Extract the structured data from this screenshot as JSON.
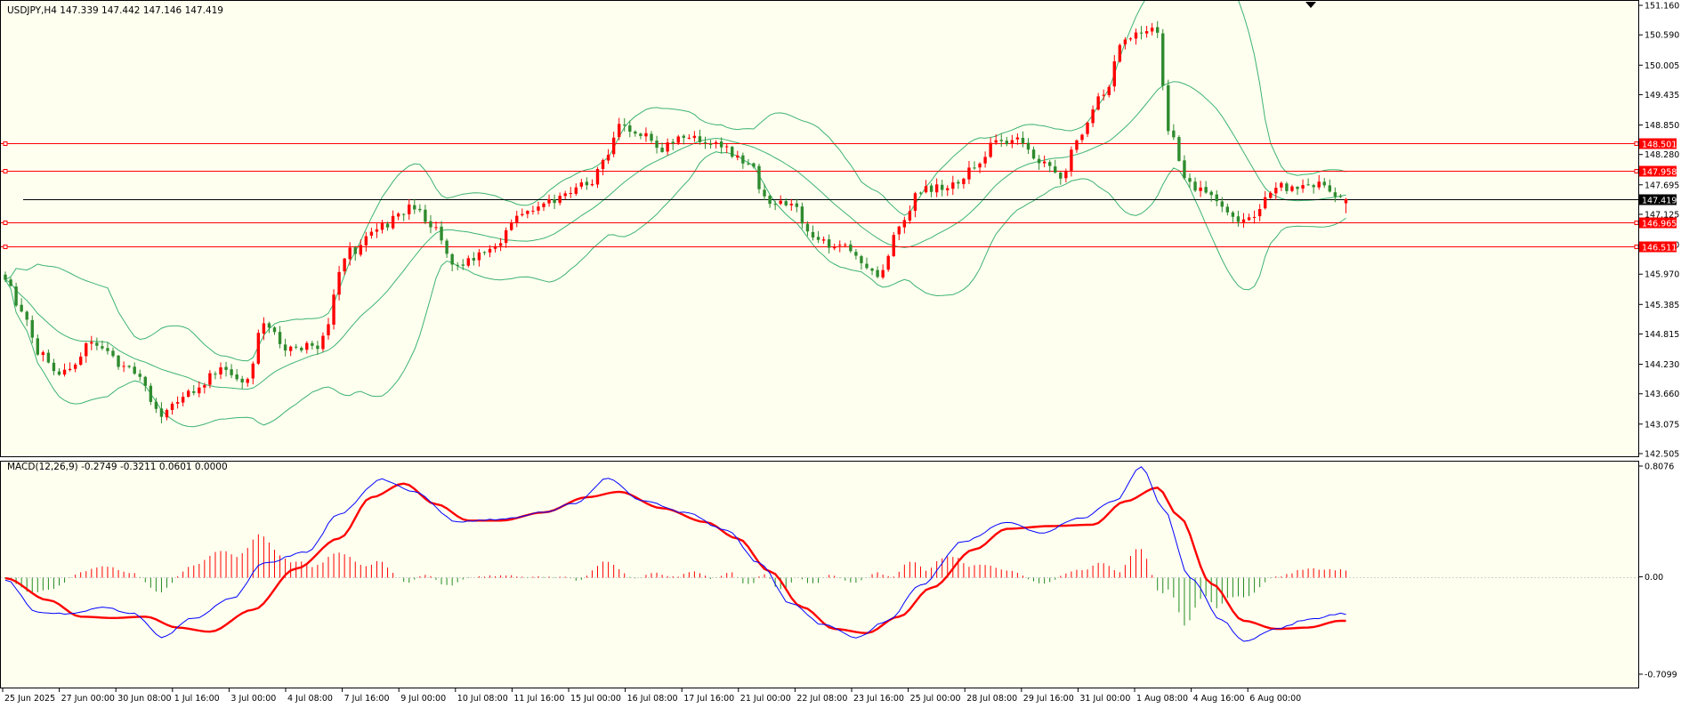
{
  "price_chart": {
    "header": "USDJPY,H4  147.339 147.442 147.146 147.419",
    "y_ticks": [
      151.16,
      150.59,
      150.005,
      149.435,
      148.85,
      148.28,
      147.695,
      147.125,
      146.54,
      145.97,
      145.385,
      144.815,
      144.23,
      143.66,
      143.075,
      142.505
    ],
    "ylim": [
      142.505,
      151.16
    ],
    "current_price": {
      "value": 147.419,
      "label": "147.419"
    },
    "levels": [
      {
        "value": 148.501,
        "label": "148.501"
      },
      {
        "value": 147.958,
        "label": "147.958"
      },
      {
        "value": 146.965,
        "label": "146.965"
      },
      {
        "value": 146.511,
        "label": "146.511"
      }
    ]
  },
  "macd_chart": {
    "header": "MACD(12,26,9) -0.2749 -0.3211 0.0601 0.0000",
    "y_ticks": [
      {
        "value": 0.8076,
        "label": "0.8076"
      },
      {
        "value": 0.0,
        "label": "0.00"
      },
      {
        "value": -0.7099,
        "label": "-0.7099"
      }
    ],
    "ylim": [
      -0.7099,
      0.8076
    ]
  },
  "x_labels": [
    "25 Jun 2025",
    "27 Jun 00:00",
    "30 Jun 08:00",
    "1 Jul 16:00",
    "3 Jul 00:00",
    "4 Jul 08:00",
    "7 Jul 16:00",
    "9 Jul 00:00",
    "10 Jul 08:00",
    "11 Jul 16:00",
    "15 Jul 00:00",
    "16 Jul 08:00",
    "17 Jul 16:00",
    "21 Jul 00:00",
    "22 Jul 08:00",
    "23 Jul 16:00",
    "25 Jul 00:00",
    "28 Jul 08:00",
    "29 Jul 16:00",
    "31 Jul 00:00",
    "1 Aug 08:00",
    "4 Aug 16:00",
    "6 Aug 00:00"
  ],
  "colors": {
    "bull": "#ff0000",
    "bear": "#2e8b2e",
    "band": "#3cb371",
    "level": "#ff0000",
    "macd_line": "#0000ff",
    "signal_line": "#ff0000",
    "hist_pos": "#ff0000",
    "hist_neg": "#228b22"
  },
  "chart_data": [
    {
      "type": "candlestick",
      "title": "USDJPY,H4",
      "ylim": [
        142.505,
        151.16
      ],
      "close_anchors": [
        [
          0,
          145.8
        ],
        [
          3,
          145.3
        ],
        [
          6,
          144.5
        ],
        [
          10,
          144.0
        ],
        [
          16,
          144.6
        ],
        [
          24,
          144.1
        ],
        [
          29,
          143.3
        ],
        [
          33,
          143.6
        ],
        [
          40,
          144.1
        ],
        [
          45,
          143.9
        ],
        [
          48,
          145.1
        ],
        [
          52,
          144.5
        ],
        [
          58,
          144.6
        ],
        [
          64,
          146.4
        ],
        [
          70,
          146.9
        ],
        [
          76,
          147.3
        ],
        [
          80,
          146.8
        ],
        [
          84,
          146.1
        ],
        [
          90,
          146.5
        ],
        [
          96,
          147.1
        ],
        [
          102,
          147.4
        ],
        [
          108,
          147.7
        ],
        [
          112,
          148.2
        ],
        [
          114,
          148.9
        ],
        [
          118,
          148.7
        ],
        [
          122,
          148.4
        ],
        [
          126,
          148.6
        ],
        [
          132,
          148.5
        ],
        [
          138,
          148.1
        ],
        [
          142,
          147.3
        ],
        [
          146,
          147.4
        ],
        [
          150,
          146.6
        ],
        [
          156,
          146.5
        ],
        [
          162,
          146.0
        ],
        [
          166,
          146.8
        ],
        [
          170,
          147.6
        ],
        [
          176,
          147.7
        ],
        [
          180,
          148.0
        ],
        [
          184,
          148.5
        ],
        [
          188,
          148.6
        ],
        [
          192,
          148.1
        ],
        [
          196,
          147.9
        ],
        [
          200,
          148.7
        ],
        [
          204,
          149.5
        ],
        [
          208,
          150.5
        ],
        [
          212,
          150.7
        ],
        [
          214,
          150.6
        ],
        [
          216,
          148.7
        ],
        [
          220,
          147.7
        ],
        [
          224,
          147.5
        ],
        [
          228,
          147.0
        ],
        [
          232,
          147.1
        ],
        [
          236,
          147.7
        ],
        [
          240,
          147.6
        ],
        [
          244,
          147.7
        ],
        [
          247,
          147.4
        ],
        [
          249,
          147.42
        ]
      ],
      "x_labels": [
        "25 Jun 2025",
        "27 Jun 00:00",
        "30 Jun 08:00",
        "1 Jul 16:00",
        "3 Jul 00:00",
        "4 Jul 08:00",
        "7 Jul 16:00",
        "9 Jul 00:00",
        "10 Jul 08:00",
        "11 Jul 16:00",
        "15 Jul 00:00",
        "16 Jul 08:00",
        "17 Jul 16:00",
        "21 Jul 00:00",
        "22 Jul 08:00",
        "23 Jul 16:00",
        "25 Jul 00:00",
        "28 Jul 08:00",
        "29 Jul 16:00",
        "31 Jul 00:00",
        "1 Aug 08:00",
        "4 Aug 16:00",
        "6 Aug 00:00"
      ],
      "last_bar": {
        "open": 147.339,
        "high": 147.442,
        "low": 147.146,
        "close": 147.419
      },
      "horizontal_levels": [
        148.501,
        147.958,
        146.965,
        146.511
      ],
      "overlay": "Bollinger Bands"
    },
    {
      "type": "line",
      "title": "MACD(12,26,9)",
      "ylim": [
        -0.7099,
        0.8076
      ],
      "last_values": {
        "macd": -0.2749,
        "signal": -0.3211,
        "histogram": 0.0601
      },
      "series": [
        {
          "name": "MACD",
          "anchors": [
            [
              0,
              -0.02
            ],
            [
              6,
              -0.26
            ],
            [
              12,
              -0.27
            ],
            [
              18,
              -0.22
            ],
            [
              24,
              -0.27
            ],
            [
              29,
              -0.44
            ],
            [
              35,
              -0.3
            ],
            [
              42,
              -0.16
            ],
            [
              48,
              0.1
            ],
            [
              56,
              0.18
            ],
            [
              62,
              0.46
            ],
            [
              70,
              0.71
            ],
            [
              76,
              0.62
            ],
            [
              84,
              0.4
            ],
            [
              92,
              0.42
            ],
            [
              100,
              0.47
            ],
            [
              106,
              0.54
            ],
            [
              112,
              0.72
            ],
            [
              118,
              0.56
            ],
            [
              126,
              0.47
            ],
            [
              134,
              0.34
            ],
            [
              140,
              0.1
            ],
            [
              146,
              -0.2
            ],
            [
              152,
              -0.35
            ],
            [
              158,
              -0.44
            ],
            [
              164,
              -0.32
            ],
            [
              170,
              -0.06
            ],
            [
              178,
              0.26
            ],
            [
              186,
              0.4
            ],
            [
              192,
              0.32
            ],
            [
              200,
              0.43
            ],
            [
              206,
              0.55
            ],
            [
              211,
              0.8
            ],
            [
              215,
              0.5
            ],
            [
              220,
              0.0
            ],
            [
              226,
              -0.32
            ],
            [
              230,
              -0.47
            ],
            [
              236,
              -0.38
            ],
            [
              242,
              -0.31
            ],
            [
              248,
              -0.27
            ]
          ]
        },
        {
          "name": "Signal",
          "anchors": [
            [
              0,
              -0.01
            ],
            [
              8,
              -0.17
            ],
            [
              14,
              -0.29
            ],
            [
              20,
              -0.3
            ],
            [
              26,
              -0.29
            ],
            [
              32,
              -0.37
            ],
            [
              38,
              -0.4
            ],
            [
              46,
              -0.24
            ],
            [
              54,
              0.06
            ],
            [
              62,
              0.28
            ],
            [
              68,
              0.58
            ],
            [
              74,
              0.68
            ],
            [
              80,
              0.53
            ],
            [
              86,
              0.41
            ],
            [
              92,
              0.41
            ],
            [
              100,
              0.47
            ],
            [
              108,
              0.58
            ],
            [
              114,
              0.62
            ],
            [
              122,
              0.5
            ],
            [
              130,
              0.4
            ],
            [
              136,
              0.28
            ],
            [
              142,
              0.04
            ],
            [
              148,
              -0.22
            ],
            [
              154,
              -0.38
            ],
            [
              160,
              -0.41
            ],
            [
              166,
              -0.29
            ],
            [
              172,
              -0.08
            ],
            [
              180,
              0.2
            ],
            [
              186,
              0.35
            ],
            [
              194,
              0.37
            ],
            [
              202,
              0.38
            ],
            [
              208,
              0.55
            ],
            [
              214,
              0.65
            ],
            [
              218,
              0.44
            ],
            [
              224,
              -0.05
            ],
            [
              230,
              -0.32
            ],
            [
              236,
              -0.38
            ],
            [
              242,
              -0.37
            ],
            [
              248,
              -0.32
            ]
          ]
        }
      ]
    }
  ]
}
